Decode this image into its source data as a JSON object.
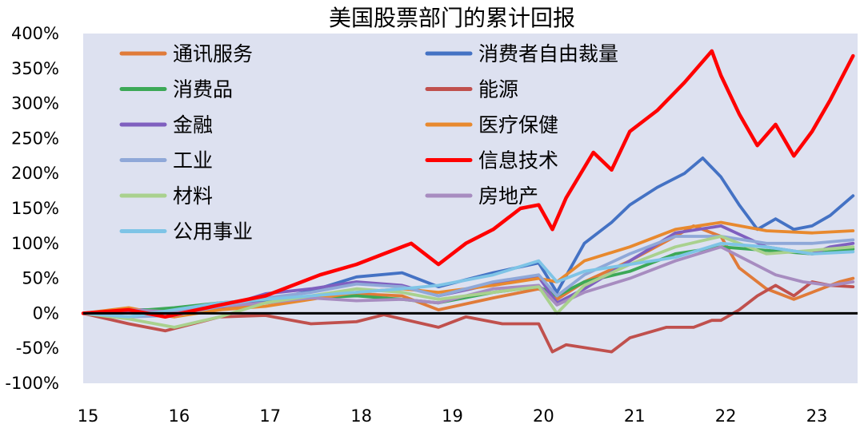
{
  "chart_data": {
    "type": "line",
    "title": "美国股票部门的累计回报",
    "xlabel": "",
    "ylabel": "",
    "x_range": [
      2015.0,
      2023.5
    ],
    "ylim": [
      -100,
      400
    ],
    "y_tick_values": [
      -100,
      -50,
      0,
      50,
      100,
      150,
      200,
      250,
      300,
      350,
      400
    ],
    "y_tick_labels": [
      "-100%",
      "-50%",
      "0%",
      "50%",
      "100%",
      "150%",
      "200%",
      "250%",
      "300%",
      "350%",
      "400%"
    ],
    "x_tick_values": [
      2015,
      2016,
      2017,
      2018,
      2019,
      2020,
      2021,
      2022,
      2023
    ],
    "x_tick_labels": [
      "15",
      "16",
      "17",
      "18",
      "19",
      "20",
      "21",
      "22",
      "23"
    ],
    "zero_line": true,
    "legend_position": "top-left, two columns",
    "series": [
      {
        "name": "通讯服务",
        "color": "#E07B39",
        "x": [
          2015.0,
          2015.5,
          2016.0,
          2016.5,
          2017.0,
          2017.5,
          2018.0,
          2018.5,
          2018.9,
          2019.5,
          2020.0,
          2020.2,
          2020.5,
          2021.0,
          2021.5,
          2021.7,
          2022.0,
          2022.2,
          2022.5,
          2022.8,
          2023.0,
          2023.3,
          2023.45
        ],
        "values": [
          0,
          3,
          2,
          5,
          15,
          22,
          28,
          25,
          5,
          22,
          35,
          20,
          45,
          75,
          110,
          125,
          110,
          65,
          35,
          20,
          30,
          45,
          50
        ]
      },
      {
        "name": "消费者自由裁量",
        "color": "#4472C4",
        "x": [
          2015.0,
          2015.5,
          2016.0,
          2016.5,
          2017.0,
          2017.5,
          2018.0,
          2018.5,
          2018.9,
          2019.5,
          2020.0,
          2020.2,
          2020.5,
          2020.8,
          2021.0,
          2021.3,
          2021.6,
          2021.8,
          2022.0,
          2022.2,
          2022.4,
          2022.6,
          2022.8,
          2023.0,
          2023.2,
          2023.45
        ],
        "values": [
          0,
          5,
          5,
          12,
          18,
          32,
          52,
          58,
          38,
          58,
          72,
          30,
          100,
          130,
          155,
          180,
          200,
          222,
          195,
          155,
          120,
          135,
          120,
          125,
          140,
          168
        ]
      },
      {
        "name": "消费品",
        "color": "#3CA857",
        "x": [
          2015.0,
          2015.5,
          2016.0,
          2016.5,
          2017.0,
          2017.5,
          2018.0,
          2018.5,
          2018.9,
          2019.5,
          2020.0,
          2020.2,
          2020.5,
          2021.0,
          2021.5,
          2022.0,
          2022.5,
          2023.0,
          2023.45
        ],
        "values": [
          0,
          3,
          8,
          15,
          20,
          22,
          25,
          20,
          15,
          30,
          38,
          25,
          45,
          60,
          85,
          95,
          90,
          85,
          92
        ]
      },
      {
        "name": "能源",
        "color": "#C0504D",
        "x": [
          2015.0,
          2015.5,
          2015.9,
          2016.5,
          2017.0,
          2017.5,
          2018.0,
          2018.3,
          2018.9,
          2019.2,
          2019.6,
          2020.0,
          2020.15,
          2020.3,
          2020.8,
          2021.0,
          2021.4,
          2021.7,
          2021.9,
          2022.0,
          2022.2,
          2022.4,
          2022.6,
          2022.8,
          2023.0,
          2023.2,
          2023.45
        ],
        "values": [
          0,
          -15,
          -25,
          -5,
          -3,
          -15,
          -12,
          -2,
          -20,
          -5,
          -15,
          -15,
          -55,
          -45,
          -55,
          -35,
          -20,
          -20,
          -10,
          -10,
          5,
          25,
          40,
          25,
          45,
          40,
          38
        ]
      },
      {
        "name": "金融",
        "color": "#7F5FBF",
        "x": [
          2015.0,
          2015.5,
          2016.0,
          2016.5,
          2017.0,
          2017.5,
          2018.0,
          2018.5,
          2018.9,
          2019.5,
          2020.0,
          2020.2,
          2020.5,
          2021.0,
          2021.5,
          2022.0,
          2022.5,
          2023.0,
          2023.2,
          2023.45
        ],
        "values": [
          0,
          3,
          -5,
          8,
          28,
          35,
          45,
          40,
          25,
          42,
          52,
          15,
          35,
          75,
          115,
          125,
          95,
          85,
          95,
          100
        ]
      },
      {
        "name": "医疗保健",
        "color": "#E8892E",
        "x": [
          2015.0,
          2015.5,
          2016.0,
          2016.5,
          2017.0,
          2017.5,
          2018.0,
          2018.5,
          2018.9,
          2019.5,
          2020.0,
          2020.2,
          2020.5,
          2021.0,
          2021.5,
          2022.0,
          2022.5,
          2023.0,
          2023.45
        ],
        "values": [
          0,
          8,
          -5,
          5,
          10,
          20,
          30,
          35,
          30,
          40,
          50,
          45,
          75,
          95,
          120,
          130,
          118,
          115,
          118
        ]
      },
      {
        "name": "信息技术",
        "color": "#FF0000",
        "x": [
          2015.0,
          2015.5,
          2015.9,
          2016.5,
          2017.0,
          2017.3,
          2017.6,
          2018.0,
          2018.3,
          2018.6,
          2018.9,
          2019.2,
          2019.5,
          2019.8,
          2020.0,
          2020.15,
          2020.3,
          2020.6,
          2020.8,
          2021.0,
          2021.3,
          2021.6,
          2021.9,
          2022.0,
          2022.2,
          2022.4,
          2022.6,
          2022.8,
          2023.0,
          2023.2,
          2023.45
        ],
        "values": [
          0,
          5,
          -5,
          12,
          25,
          40,
          55,
          70,
          85,
          100,
          70,
          100,
          120,
          150,
          155,
          120,
          165,
          230,
          205,
          260,
          290,
          330,
          375,
          340,
          285,
          240,
          270,
          225,
          260,
          305,
          368
        ]
      },
      {
        "name": "房地产",
        "color": "#A78CC0",
        "x": [
          2015.0,
          2015.5,
          2016.0,
          2016.5,
          2017.0,
          2017.5,
          2018.0,
          2018.5,
          2018.9,
          2019.5,
          2020.0,
          2020.2,
          2020.5,
          2021.0,
          2021.5,
          2022.0,
          2022.3,
          2022.6,
          2022.9,
          2023.2,
          2023.45
        ],
        "values": [
          0,
          5,
          2,
          10,
          15,
          22,
          18,
          20,
          15,
          35,
          40,
          12,
          30,
          50,
          75,
          95,
          75,
          55,
          45,
          40,
          45
        ]
      },
      {
        "name": "工业",
        "color": "#8FA8D8",
        "x": [
          2015.0,
          2015.5,
          2016.0,
          2016.5,
          2017.0,
          2017.5,
          2018.0,
          2018.5,
          2018.9,
          2019.5,
          2020.0,
          2020.2,
          2020.5,
          2021.0,
          2021.5,
          2022.0,
          2022.5,
          2023.0,
          2023.45
        ],
        "values": [
          0,
          -5,
          -3,
          10,
          22,
          30,
          42,
          38,
          25,
          45,
          55,
          25,
          55,
          85,
          110,
          110,
          100,
          100,
          105
        ]
      },
      {
        "name": "材料",
        "color": "#A9D18E",
        "x": [
          2015.0,
          2015.5,
          2016.0,
          2016.5,
          2017.0,
          2017.5,
          2018.0,
          2018.5,
          2018.9,
          2019.5,
          2020.0,
          2020.2,
          2020.5,
          2021.0,
          2021.5,
          2022.0,
          2022.5,
          2023.0,
          2023.45
        ],
        "values": [
          0,
          -8,
          -20,
          -5,
          15,
          25,
          35,
          30,
          20,
          30,
          38,
          0,
          40,
          70,
          95,
          110,
          85,
          90,
          95
        ]
      },
      {
        "name": "公用事业",
        "color": "#7EC4E6",
        "x": [
          2015.0,
          2015.5,
          2016.0,
          2016.5,
          2017.0,
          2017.5,
          2018.0,
          2018.5,
          2018.9,
          2019.5,
          2020.0,
          2020.2,
          2020.5,
          2021.0,
          2021.5,
          2022.0,
          2022.5,
          2023.0,
          2023.45
        ],
        "values": [
          0,
          -5,
          5,
          15,
          20,
          25,
          30,
          35,
          40,
          55,
          75,
          45,
          60,
          70,
          80,
          100,
          95,
          85,
          88
        ]
      }
    ]
  }
}
